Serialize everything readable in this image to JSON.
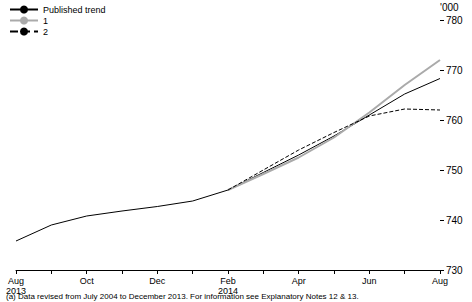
{
  "chart_data": {
    "type": "line",
    "categories": [
      "Aug\n2013",
      null,
      "Oct",
      null,
      "Dec",
      null,
      "Feb\n2014",
      null,
      "Apr",
      null,
      "Jun",
      null,
      "Aug"
    ],
    "series": [
      {
        "name": "Published trend",
        "color": "#000000",
        "line_style": "solid",
        "values": [
          735.8,
          739.0,
          740.8,
          741.8,
          742.7,
          743.8,
          746.0,
          749.5,
          753.0,
          756.8,
          761.0,
          765.2,
          768.3
        ]
      },
      {
        "name": "1",
        "color": "#aaaaaa",
        "line_style": "solid",
        "values": [
          null,
          null,
          null,
          null,
          null,
          null,
          746.0,
          749.2,
          752.5,
          756.5,
          761.5,
          767.0,
          772.0
        ]
      },
      {
        "name": "2",
        "color": "#000000",
        "line_style": "dashed",
        "values": [
          null,
          null,
          null,
          null,
          null,
          null,
          746.0,
          750.0,
          754.0,
          757.5,
          760.8,
          762.2,
          762.0
        ]
      }
    ],
    "ylabel": "'000",
    "ylim": [
      730,
      780
    ],
    "yticks": [
      730,
      740,
      750,
      760,
      770,
      780
    ],
    "grid": false,
    "legend": "top-left",
    "annotations": [
      "(a) Data revised from July 2004 to December 2013. For information see Explanatory Notes 12 & 13."
    ]
  }
}
